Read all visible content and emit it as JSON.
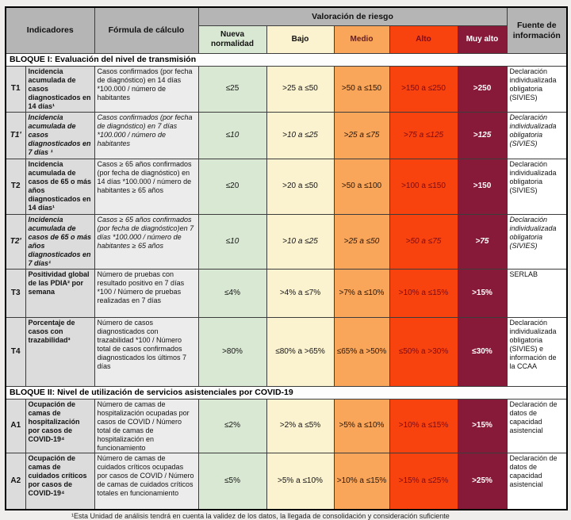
{
  "header": {
    "indicadores": "Indicadores",
    "formula": "Fórmula de cálculo",
    "valoracion": "Valoración de riesgo",
    "fuente": "Fuente de información",
    "levels": [
      {
        "label": "Nueva normalidad",
        "color": "#d9e8d2"
      },
      {
        "label": "Bajo",
        "color": "#fbf2cf"
      },
      {
        "label": "Medio",
        "color": "#f9a55a"
      },
      {
        "label": "Alto",
        "color": "#f9430e"
      },
      {
        "label": "Muy alto",
        "color": "#871a39"
      }
    ]
  },
  "blocks": {
    "block1": "BLOQUE I: Evaluación del nivel de transmisión",
    "block2": "BLOQUE II: Nivel de utilización de servicios asistenciales por COVID-19"
  },
  "rows": [
    {
      "id": "T1",
      "indicator": "Incidencia acumulada de casos diagnosticados en 14 días¹",
      "formula": "Casos confirmados (por fecha de diagnóstico) en 14 días *100.000 / número de habitantes",
      "values": [
        "≤25",
        ">25 a ≤50",
        ">50 a ≤150",
        ">150 a ≤250",
        ">250"
      ],
      "source": "Declaración individualizada obligatoria (SIVIES)"
    },
    {
      "id": "T1'",
      "indicator": "Incidencia acumulada de casos diagnosticados en 7 días ¹",
      "formula": "Casos confirmados (por fecha de diagnóstico) en 7 días *100.000 / número de habitantes",
      "values": [
        "≤10",
        ">10 a ≤25",
        ">25 a ≤75",
        ">75 a ≤125",
        ">125"
      ],
      "source": "Declaración individualizada obligatoria (SIVIES)"
    },
    {
      "id": "T2",
      "indicator": "Incidencia acumulada de casos de 65 o más años diagnosticados en 14 días¹",
      "formula": "Casos ≥ 65  años confirmados (por fecha de diagnóstico) en 14 días *100.000 / número de habitantes ≥ 65 años",
      "values": [
        "≤20",
        ">20 a ≤50",
        ">50 a ≤100",
        ">100 a ≤150",
        ">150"
      ],
      "source": "Declaración individualizada obligatoria (SIVIES)"
    },
    {
      "id": "T2'",
      "indicator": "Incidencia acumulada de casos de 65 o  más  años diagnosticados en 7 días¹",
      "formula": "Casos ≥ 65 años confirmados (por fecha de diagnóstico)en 7 días  *100.000 / número de habitantes ≥ 65  años",
      "values": [
        "≤10",
        ">10 a ≤25",
        ">25 a ≤50",
        ">50 a ≤75",
        ">75"
      ],
      "source": "Declaración individualizada obligatoria (SIVIES)"
    },
    {
      "id": "T3",
      "indicator": "Positividad global de las PDIA² por semana",
      "formula": "Número de pruebas con resultado positivo en 7 días *100 / Número de pruebas realizadas en 7 días",
      "values": [
        "≤4%",
        ">4% a ≤7%",
        ">7% a ≤10%",
        ">10% a ≤15%",
        ">15%"
      ],
      "source": "SERLAB"
    },
    {
      "id": "T4",
      "indicator": "Porcentaje de casos con trazabilidad³",
      "formula": "Número de casos diagnosticados con trazabilidad *100 / Número total de casos confirmados diagnosticados los últimos 7 días",
      "values": [
        ">80%",
        "≤80% a >65%",
        "≤65% a >50%",
        "≤50% a >30%",
        "≤30%"
      ],
      "source": "Declaración individualizada obligatoria (SIVIES) e información de la CCAA"
    },
    {
      "id": "A1",
      "indicator": "Ocupación de camas de hospitalización por casos de COVID-19⁴",
      "formula": "Número de camas de hospitalización ocupadas por casos de COVID / Número total de camas de hospitalización en funcionamiento",
      "values": [
        "≤2%",
        ">2% a ≤5%",
        ">5% a ≤10%",
        ">10% a ≤15%",
        ">15%"
      ],
      "source": "Declaración de datos de capacidad asistencial"
    },
    {
      "id": "A2",
      "indicator": "Ocupación de camas de cuidados críticos por casos de COVID-19⁴",
      "formula": "Número de camas de cuidados críticos ocupadas por casos de COVID / Número de camas de cuidados críticos totales en funcionamiento",
      "values": [
        "≤5%",
        ">5% a ≤10%",
        ">10% a ≤15%",
        ">15% a ≤25%",
        ">25%"
      ],
      "source": "Declaración de datos de capacidad asistencial"
    }
  ],
  "footnote": "¹Esta Unidad de análisis tendrá en cuenta la validez de los datos, la llegada de consolidación y consideración suficiente",
  "colors": {
    "header_gray": "#b5b5b5",
    "label_gray": "#dcdcdc",
    "formula_gray": "#ececec",
    "nueva_normalidad": "#d9e8d2",
    "bajo": "#fbf2cf",
    "medio": "#f9a55a",
    "alto": "#f9430e",
    "muy_alto": "#871a39"
  }
}
